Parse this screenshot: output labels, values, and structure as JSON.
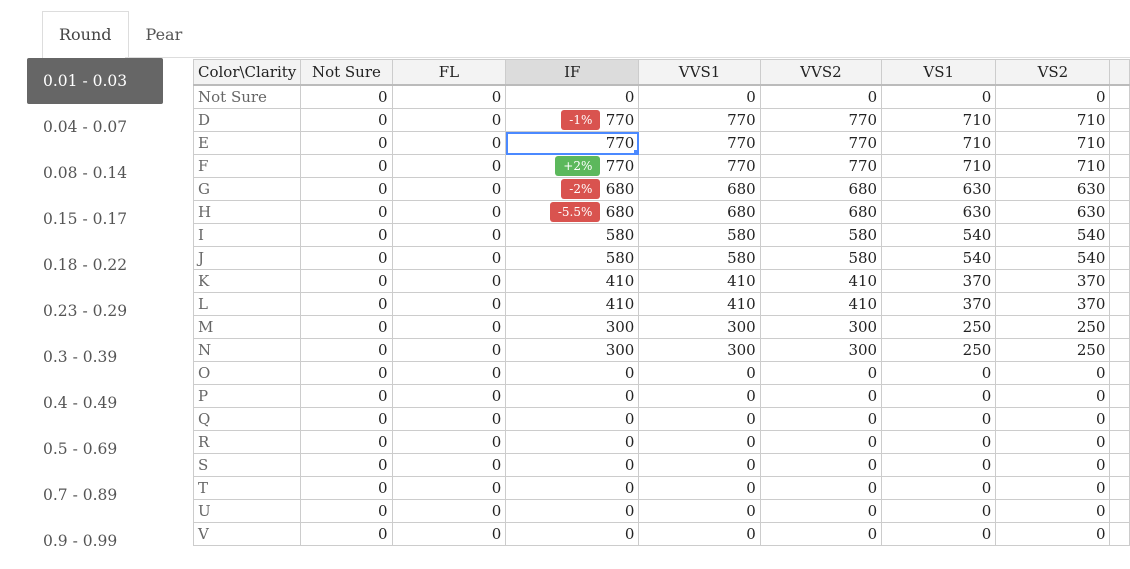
{
  "tabs": [
    {
      "label": "Round",
      "active": true
    },
    {
      "label": "Pear",
      "active": false
    }
  ],
  "sidebar": {
    "items": [
      "0.01 - 0.03",
      "0.04 - 0.07",
      "0.08 - 0.14",
      "0.15 - 0.17",
      "0.18 - 0.22",
      "0.23 - 0.29",
      "0.3 - 0.39",
      "0.4 - 0.49",
      "0.5 - 0.69",
      "0.7 - 0.89",
      "0.9 - 0.99"
    ],
    "selected": 0
  },
  "grid": {
    "columns": [
      "Color\\Clarity",
      "Not Sure",
      "FL",
      "IF",
      "VVS1",
      "VVS2",
      "VS1",
      "VS2",
      ""
    ],
    "highlight_column": 3,
    "rows": [
      [
        "Not Sure",
        0,
        0,
        0,
        0,
        0,
        0,
        0
      ],
      [
        "D",
        0,
        0,
        770,
        770,
        770,
        710,
        710
      ],
      [
        "E",
        0,
        0,
        770,
        770,
        770,
        710,
        710
      ],
      [
        "F",
        0,
        0,
        770,
        770,
        770,
        710,
        710
      ],
      [
        "G",
        0,
        0,
        680,
        680,
        680,
        630,
        630
      ],
      [
        "H",
        0,
        0,
        680,
        680,
        680,
        630,
        630
      ],
      [
        "I",
        0,
        0,
        580,
        580,
        580,
        540,
        540
      ],
      [
        "J",
        0,
        0,
        580,
        580,
        580,
        540,
        540
      ],
      [
        "K",
        0,
        0,
        410,
        410,
        410,
        370,
        370
      ],
      [
        "L",
        0,
        0,
        410,
        410,
        410,
        370,
        370
      ],
      [
        "M",
        0,
        0,
        300,
        300,
        300,
        250,
        250
      ],
      [
        "N",
        0,
        0,
        300,
        300,
        300,
        250,
        250
      ],
      [
        "O",
        0,
        0,
        0,
        0,
        0,
        0,
        0
      ],
      [
        "P",
        0,
        0,
        0,
        0,
        0,
        0,
        0
      ],
      [
        "Q",
        0,
        0,
        0,
        0,
        0,
        0,
        0
      ],
      [
        "R",
        0,
        0,
        0,
        0,
        0,
        0,
        0
      ],
      [
        "S",
        0,
        0,
        0,
        0,
        0,
        0,
        0
      ],
      [
        "T",
        0,
        0,
        0,
        0,
        0,
        0,
        0
      ],
      [
        "U",
        0,
        0,
        0,
        0,
        0,
        0,
        0
      ],
      [
        "V",
        0,
        0,
        0,
        0,
        0,
        0,
        0
      ]
    ],
    "selected_cell": {
      "row": 2,
      "col": 3
    },
    "badges": [
      {
        "row": 1,
        "col": 3,
        "text": "-1%",
        "color": "#d9534f"
      },
      {
        "row": 3,
        "col": 3,
        "text": "+2%",
        "color": "#5cb85c"
      },
      {
        "row": 4,
        "col": 3,
        "text": "-2%",
        "color": "#d9534f"
      },
      {
        "row": 5,
        "col": 3,
        "text": "-5.5%",
        "color": "#d9534f"
      }
    ]
  }
}
